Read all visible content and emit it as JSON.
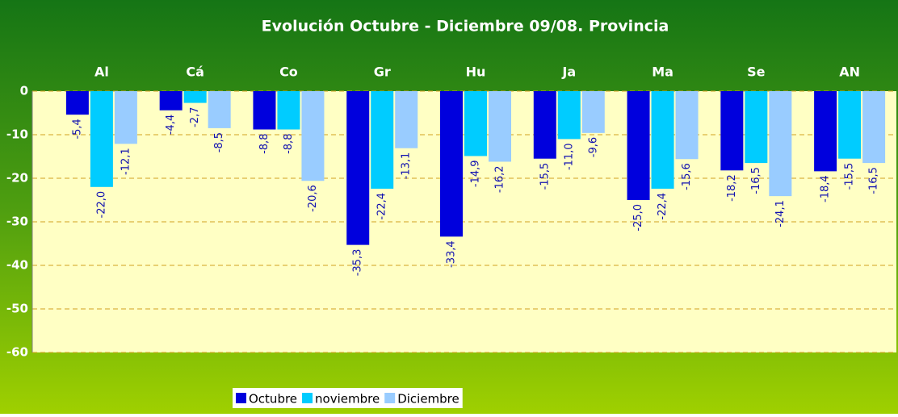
{
  "chart_data": {
    "type": "bar",
    "title": "Evolución Octubre - Diciembre 09/08. Provincia",
    "categories": [
      "Al",
      "Cá",
      "Co",
      "Gr",
      "Hu",
      "Ja",
      "Ma",
      "Se",
      "AN"
    ],
    "series": [
      {
        "name": "Octubre",
        "color": "#0000dd",
        "values": [
          -5.4,
          -4.4,
          -8.8,
          -35.3,
          -33.4,
          -15.5,
          -25.0,
          -18.2,
          -18.4
        ],
        "value_labels": [
          "-5,4",
          "-4,4",
          "-8,8",
          "-35,3",
          "-33,4",
          "-15,5",
          "-25,0",
          "-18,2",
          "-18,4"
        ]
      },
      {
        "name": "noviembre",
        "color": "#00ccff",
        "values": [
          -22.0,
          -2.7,
          -8.8,
          -22.4,
          -14.9,
          -11.0,
          -22.4,
          -16.5,
          -15.5
        ],
        "value_labels": [
          "-22,0",
          "-2,7",
          "-8,8",
          "-22,4",
          "-14,9",
          "-11,0",
          "-22,4",
          "-16,5",
          "-15,5"
        ]
      },
      {
        "name": "Diciembre",
        "color": "#99ccff",
        "values": [
          -12.1,
          -8.5,
          -20.6,
          -13.1,
          -16.2,
          -9.6,
          -15.6,
          -24.1,
          -16.5
        ],
        "value_labels": [
          "-12,1",
          "-8,5",
          "-20,6",
          "-13,1",
          "-16,2",
          "-9,6",
          "-15,6",
          "-24,1",
          "-16,5"
        ]
      }
    ],
    "ylim": [
      -60,
      0
    ],
    "yticks": [
      0,
      -10,
      -20,
      -30,
      -40,
      -50,
      -60
    ],
    "grid": true
  }
}
